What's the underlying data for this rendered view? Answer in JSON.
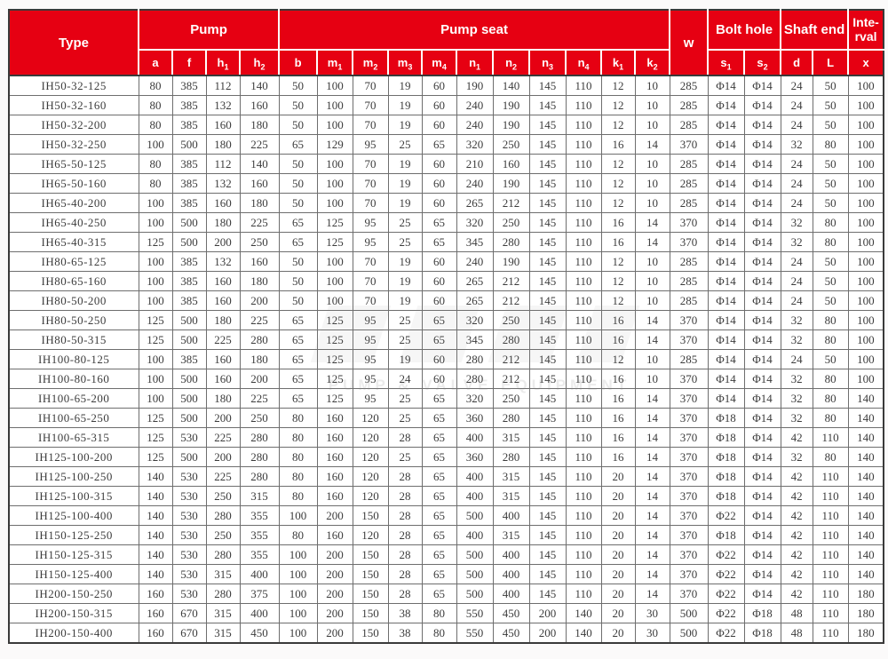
{
  "page": {
    "background": "#fbfafa"
  },
  "theme": {
    "header_red": "#e60012",
    "header_text": "#ffffff",
    "grid_line": "#6e6e6e",
    "outer_border": "#3a3a3a",
    "cell_text": "#3c3c3c"
  },
  "watermark": {
    "text": "PUMP & VALVE EQUIPMENT"
  },
  "table": {
    "header": {
      "type_label": "Type",
      "pump_label": "Pump",
      "pump_seat_label": "Pump seat",
      "w_label": "w",
      "bolt_hole_label": "Bolt hole",
      "shaft_end_label": "Inte-rval",
      "shaft_end_label_real": "Shaft end",
      "interval_label": "Inte-rval",
      "sub": [
        "a",
        "f",
        "h1",
        "h2",
        "b",
        "m1",
        "m2",
        "m3",
        "m4",
        "n1",
        "n2",
        "n3",
        "n4",
        "k1",
        "k2",
        "s1",
        "s2",
        "d",
        "L",
        "x"
      ]
    },
    "columns": [
      "type",
      "a",
      "f",
      "h1",
      "h2",
      "b",
      "m1",
      "m2",
      "m3",
      "m4",
      "n1",
      "n2",
      "n3",
      "n4",
      "k1",
      "k2",
      "w",
      "s1",
      "s2",
      "d",
      "L",
      "x"
    ],
    "rows": [
      [
        "IH50-32-125",
        "80",
        "385",
        "112",
        "140",
        "50",
        "100",
        "70",
        "19",
        "60",
        "190",
        "140",
        "145",
        "110",
        "12",
        "10",
        "285",
        "Φ14",
        "Φ14",
        "24",
        "50",
        "100"
      ],
      [
        "IH50-32-160",
        "80",
        "385",
        "132",
        "160",
        "50",
        "100",
        "70",
        "19",
        "60",
        "240",
        "190",
        "145",
        "110",
        "12",
        "10",
        "285",
        "Φ14",
        "Φ14",
        "24",
        "50",
        "100"
      ],
      [
        "IH50-32-200",
        "80",
        "385",
        "160",
        "180",
        "50",
        "100",
        "70",
        "19",
        "60",
        "240",
        "190",
        "145",
        "110",
        "12",
        "10",
        "285",
        "Φ14",
        "Φ14",
        "24",
        "50",
        "100"
      ],
      [
        "IH50-32-250",
        "100",
        "500",
        "180",
        "225",
        "65",
        "129",
        "95",
        "25",
        "65",
        "320",
        "250",
        "145",
        "110",
        "16",
        "14",
        "370",
        "Φ14",
        "Φ14",
        "32",
        "80",
        "100"
      ],
      [
        "IH65-50-125",
        "80",
        "385",
        "112",
        "140",
        "50",
        "100",
        "70",
        "19",
        "60",
        "210",
        "160",
        "145",
        "110",
        "12",
        "10",
        "285",
        "Φ14",
        "Φ14",
        "24",
        "50",
        "100"
      ],
      [
        "IH65-50-160",
        "80",
        "385",
        "132",
        "160",
        "50",
        "100",
        "70",
        "19",
        "60",
        "240",
        "190",
        "145",
        "110",
        "12",
        "10",
        "285",
        "Φ14",
        "Φ14",
        "24",
        "50",
        "100"
      ],
      [
        "IH65-40-200",
        "100",
        "385",
        "160",
        "180",
        "50",
        "100",
        "70",
        "19",
        "60",
        "265",
        "212",
        "145",
        "110",
        "12",
        "10",
        "285",
        "Φ14",
        "Φ14",
        "24",
        "50",
        "100"
      ],
      [
        "IH65-40-250",
        "100",
        "500",
        "180",
        "225",
        "65",
        "125",
        "95",
        "25",
        "65",
        "320",
        "250",
        "145",
        "110",
        "16",
        "14",
        "370",
        "Φ14",
        "Φ14",
        "32",
        "80",
        "100"
      ],
      [
        "IH65-40-315",
        "125",
        "500",
        "200",
        "250",
        "65",
        "125",
        "95",
        "25",
        "65",
        "345",
        "280",
        "145",
        "110",
        "16",
        "14",
        "370",
        "Φ14",
        "Φ14",
        "32",
        "80",
        "100"
      ],
      [
        "IH80-65-125",
        "100",
        "385",
        "132",
        "160",
        "50",
        "100",
        "70",
        "19",
        "60",
        "240",
        "190",
        "145",
        "110",
        "12",
        "10",
        "285",
        "Φ14",
        "Φ14",
        "24",
        "50",
        "100"
      ],
      [
        "IH80-65-160",
        "100",
        "385",
        "160",
        "180",
        "50",
        "100",
        "70",
        "19",
        "60",
        "265",
        "212",
        "145",
        "110",
        "12",
        "10",
        "285",
        "Φ14",
        "Φ14",
        "24",
        "50",
        "100"
      ],
      [
        "IH80-50-200",
        "100",
        "385",
        "160",
        "200",
        "50",
        "100",
        "70",
        "19",
        "60",
        "265",
        "212",
        "145",
        "110",
        "12",
        "10",
        "285",
        "Φ14",
        "Φ14",
        "24",
        "50",
        "100"
      ],
      [
        "IH80-50-250",
        "125",
        "500",
        "180",
        "225",
        "65",
        "125",
        "95",
        "25",
        "65",
        "320",
        "250",
        "145",
        "110",
        "16",
        "14",
        "370",
        "Φ14",
        "Φ14",
        "32",
        "80",
        "100"
      ],
      [
        "IH80-50-315",
        "125",
        "500",
        "225",
        "280",
        "65",
        "125",
        "95",
        "25",
        "65",
        "345",
        "280",
        "145",
        "110",
        "16",
        "14",
        "370",
        "Φ14",
        "Φ14",
        "32",
        "80",
        "100"
      ],
      [
        "IH100-80-125",
        "100",
        "385",
        "160",
        "180",
        "65",
        "125",
        "95",
        "19",
        "60",
        "280",
        "212",
        "145",
        "110",
        "12",
        "10",
        "285",
        "Φ14",
        "Φ14",
        "24",
        "50",
        "100"
      ],
      [
        "IH100-80-160",
        "100",
        "500",
        "160",
        "200",
        "65",
        "125",
        "95",
        "24",
        "60",
        "280",
        "212",
        "145",
        "110",
        "16",
        "10",
        "370",
        "Φ14",
        "Φ14",
        "32",
        "80",
        "100"
      ],
      [
        "IH100-65-200",
        "100",
        "500",
        "180",
        "225",
        "65",
        "125",
        "95",
        "25",
        "65",
        "320",
        "250",
        "145",
        "110",
        "16",
        "14",
        "370",
        "Φ14",
        "Φ14",
        "32",
        "80",
        "140"
      ],
      [
        "IH100-65-250",
        "125",
        "500",
        "200",
        "250",
        "80",
        "160",
        "120",
        "25",
        "65",
        "360",
        "280",
        "145",
        "110",
        "16",
        "14",
        "370",
        "Φ18",
        "Φ14",
        "32",
        "80",
        "140"
      ],
      [
        "IH100-65-315",
        "125",
        "530",
        "225",
        "280",
        "80",
        "160",
        "120",
        "28",
        "65",
        "400",
        "315",
        "145",
        "110",
        "16",
        "14",
        "370",
        "Φ18",
        "Φ14",
        "42",
        "110",
        "140"
      ],
      [
        "IH125-100-200",
        "125",
        "500",
        "200",
        "280",
        "80",
        "160",
        "120",
        "25",
        "65",
        "360",
        "280",
        "145",
        "110",
        "16",
        "14",
        "370",
        "Φ18",
        "Φ14",
        "32",
        "80",
        "140"
      ],
      [
        "IH125-100-250",
        "140",
        "530",
        "225",
        "280",
        "80",
        "160",
        "120",
        "28",
        "65",
        "400",
        "315",
        "145",
        "110",
        "20",
        "14",
        "370",
        "Φ18",
        "Φ14",
        "42",
        "110",
        "140"
      ],
      [
        "IH125-100-315",
        "140",
        "530",
        "250",
        "315",
        "80",
        "160",
        "120",
        "28",
        "65",
        "400",
        "315",
        "145",
        "110",
        "20",
        "14",
        "370",
        "Φ18",
        "Φ14",
        "42",
        "110",
        "140"
      ],
      [
        "IH125-100-400",
        "140",
        "530",
        "280",
        "355",
        "100",
        "200",
        "150",
        "28",
        "65",
        "500",
        "400",
        "145",
        "110",
        "20",
        "14",
        "370",
        "Φ22",
        "Φ14",
        "42",
        "110",
        "140"
      ],
      [
        "IH150-125-250",
        "140",
        "530",
        "250",
        "355",
        "80",
        "160",
        "120",
        "28",
        "65",
        "400",
        "315",
        "145",
        "110",
        "20",
        "14",
        "370",
        "Φ18",
        "Φ14",
        "42",
        "110",
        "140"
      ],
      [
        "IH150-125-315",
        "140",
        "530",
        "280",
        "355",
        "100",
        "200",
        "150",
        "28",
        "65",
        "500",
        "400",
        "145",
        "110",
        "20",
        "14",
        "370",
        "Φ22",
        "Φ14",
        "42",
        "110",
        "140"
      ],
      [
        "IH150-125-400",
        "140",
        "530",
        "315",
        "400",
        "100",
        "200",
        "150",
        "28",
        "65",
        "500",
        "400",
        "145",
        "110",
        "20",
        "14",
        "370",
        "Φ22",
        "Φ14",
        "42",
        "110",
        "140"
      ],
      [
        "IH200-150-250",
        "160",
        "530",
        "280",
        "375",
        "100",
        "200",
        "150",
        "28",
        "65",
        "500",
        "400",
        "145",
        "110",
        "20",
        "14",
        "370",
        "Φ22",
        "Φ14",
        "42",
        "110",
        "180"
      ],
      [
        "IH200-150-315",
        "160",
        "670",
        "315",
        "400",
        "100",
        "200",
        "150",
        "38",
        "80",
        "550",
        "450",
        "200",
        "140",
        "20",
        "30",
        "500",
        "Φ22",
        "Φ18",
        "48",
        "110",
        "180"
      ],
      [
        "IH200-150-400",
        "160",
        "670",
        "315",
        "450",
        "100",
        "200",
        "150",
        "38",
        "80",
        "550",
        "450",
        "200",
        "140",
        "20",
        "30",
        "500",
        "Φ22",
        "Φ18",
        "48",
        "110",
        "180"
      ]
    ]
  }
}
